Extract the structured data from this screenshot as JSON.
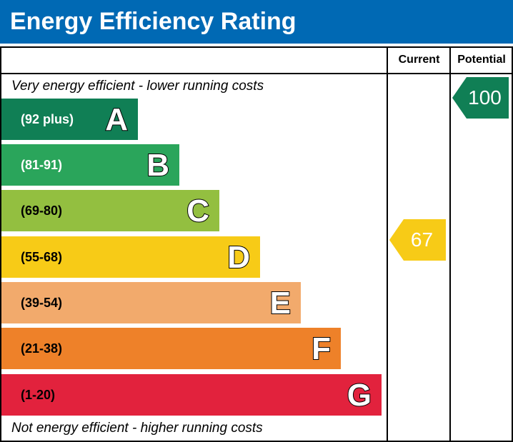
{
  "title": "Energy Efficiency Rating",
  "columns": {
    "current": "Current",
    "potential": "Potential"
  },
  "top_note": "Very energy efficient - lower running costs",
  "bottom_note": "Not energy efficient - higher running costs",
  "chart_data": {
    "type": "bar",
    "title": "Energy Efficiency Rating",
    "bands": [
      {
        "letter": "A",
        "range": "(92 plus)",
        "color": "#107f55",
        "text_color": "#ffffff"
      },
      {
        "letter": "B",
        "range": "(81-91)",
        "color": "#2aa55b",
        "text_color": "#ffffff"
      },
      {
        "letter": "C",
        "range": "(69-80)",
        "color": "#93bf40",
        "text_color": "#000000"
      },
      {
        "letter": "D",
        "range": "(55-68)",
        "color": "#f7cb17",
        "text_color": "#000000"
      },
      {
        "letter": "E",
        "range": "(39-54)",
        "color": "#f2aa6c",
        "text_color": "#000000"
      },
      {
        "letter": "F",
        "range": "(21-38)",
        "color": "#ee8129",
        "text_color": "#000000"
      },
      {
        "letter": "G",
        "range": "(1-20)",
        "color": "#e2223d",
        "text_color": "#000000"
      }
    ],
    "current": {
      "value": 67,
      "band": "D",
      "color": "#f7cb17"
    },
    "potential": {
      "value": 100,
      "band": "A",
      "color": "#107f55"
    }
  }
}
